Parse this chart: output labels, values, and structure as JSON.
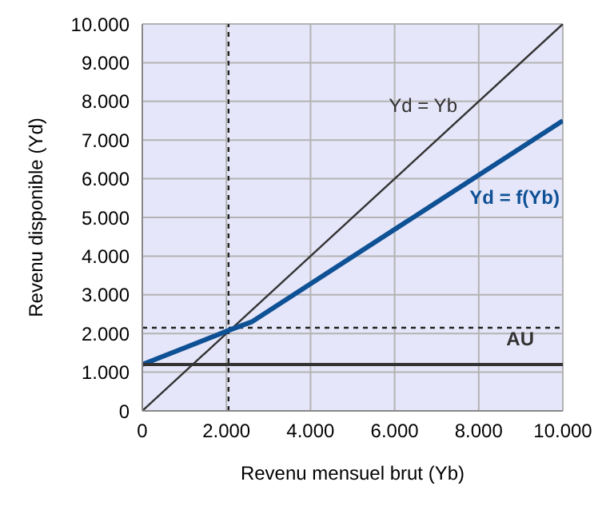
{
  "chart_data": {
    "type": "line",
    "xlabel": "Revenu mensuel brut (Yb)",
    "ylabel": "Revenu disponible (Yd)",
    "xlim": [
      0,
      10000
    ],
    "xticks": [
      0,
      {
        "value": 2000,
        "label": "2.000"
      },
      {
        "value": 4000,
        "label": "4.000"
      },
      {
        "value": 6000,
        "label": "6.000"
      },
      {
        "value": 8000,
        "label": "8.000"
      },
      {
        "value": 10000,
        "label": "10.000"
      }
    ],
    "ylim": [
      0,
      10000
    ],
    "yticks": [
      0,
      {
        "value": 1000,
        "label": "1.000"
      },
      {
        "value": 2000,
        "label": "2.000"
      },
      {
        "value": 3000,
        "label": "3.000"
      },
      {
        "value": 4000,
        "label": "4.000"
      },
      {
        "value": 5000,
        "label": "5.000"
      },
      {
        "value": 6000,
        "label": "6.000"
      },
      {
        "value": 7000,
        "label": "7.000"
      },
      {
        "value": 8000,
        "label": "8.000"
      },
      {
        "value": 9000,
        "label": "9.000"
      },
      {
        "value": 10000,
        "label": "10.000"
      }
    ],
    "grid": true,
    "marker": "none",
    "series": [
      {
        "name": "Yd = Yb",
        "color": "#333333",
        "x": [
          0,
          10000
        ],
        "values": [
          0,
          10000
        ]
      },
      {
        "name": "Yd = f(Yb)",
        "color": "#0e5195",
        "x": [
          0,
          2100,
          2600,
          10000
        ],
        "values": [
          1200,
          2100,
          2300,
          7500
        ]
      },
      {
        "name": "AU",
        "color": "#333333",
        "x": [
          0,
          10000
        ],
        "values": [
          1200,
          1200
        ]
      }
    ],
    "ref_lines": [
      {
        "axis": "x",
        "value": 2050,
        "line_style": "dotted",
        "color": "#222222"
      },
      {
        "axis": "y",
        "value": 2150,
        "line_style": "dotted",
        "color": "#222222"
      }
    ]
  }
}
